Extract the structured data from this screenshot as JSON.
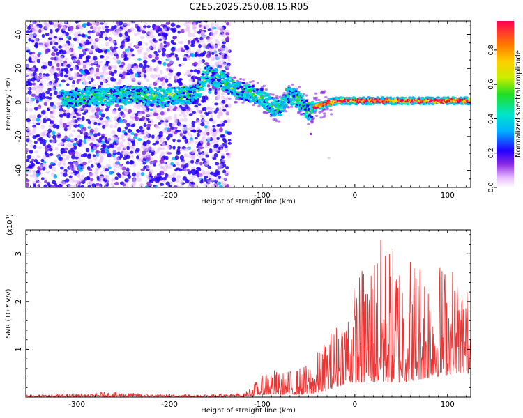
{
  "title": "C2E5.2025.250.08.15.R05",
  "chart_data": [
    {
      "type": "heatmap",
      "xlabel": "Height of straight line (km)",
      "ylabel": "Frequency (Hz)",
      "xlim": [
        -355,
        125
      ],
      "ylim": [
        -50,
        48
      ],
      "x_ticks": [
        -300,
        -200,
        -100,
        0,
        100
      ],
      "y_ticks": [
        -40,
        -20,
        0,
        20,
        40
      ],
      "noise_region_x": [
        -355,
        -135
      ],
      "signal_track": [
        {
          "x": -305,
          "y": 2
        },
        {
          "x": -290,
          "y": 4
        },
        {
          "x": -270,
          "y": 3
        },
        {
          "x": -250,
          "y": 5
        },
        {
          "x": -230,
          "y": 4
        },
        {
          "x": -205,
          "y": 3
        },
        {
          "x": -170,
          "y": 5
        },
        {
          "x": -160,
          "y": 17
        },
        {
          "x": -140,
          "y": 12
        },
        {
          "x": -130,
          "y": 8
        },
        {
          "x": -115,
          "y": 6
        },
        {
          "x": -100,
          "y": 3
        },
        {
          "x": -90,
          "y": -2
        },
        {
          "x": -80,
          "y": -4
        },
        {
          "x": -72,
          "y": 5
        },
        {
          "x": -60,
          "y": 1
        },
        {
          "x": -50,
          "y": -5
        },
        {
          "x": -40,
          "y": -2
        },
        {
          "x": -20,
          "y": 1
        },
        {
          "x": 0,
          "y": 1
        },
        {
          "x": 20,
          "y": 1
        },
        {
          "x": 40,
          "y": 1
        },
        {
          "x": 60,
          "y": 1
        },
        {
          "x": 80,
          "y": 1
        },
        {
          "x": 100,
          "y": 1
        },
        {
          "x": 125,
          "y": 1
        }
      ],
      "colorbar": {
        "label": "Normalized spectral amplitude",
        "range": [
          0.0,
          0.97
        ],
        "ticks": [
          "0.0",
          "0.2",
          "0.4",
          "0.6",
          "0.8"
        ]
      }
    },
    {
      "type": "line",
      "xlabel": "Height of straight line (km)",
      "ylabel": "SNR (10 * v/v)",
      "multiplier": "(x10",
      "multiplier_exp": "4",
      "multiplier_close": ")",
      "xlim": [
        -355,
        125
      ],
      "ylim": [
        0,
        3.5
      ],
      "x_ticks": [
        -300,
        -200,
        -100,
        0,
        100
      ],
      "y_ticks": [
        1,
        2,
        3
      ],
      "color": "#ee3333",
      "envelope": [
        {
          "x": -355,
          "lo": 0.01,
          "hi": 0.05
        },
        {
          "x": -280,
          "lo": 0.01,
          "hi": 0.07
        },
        {
          "x": -272,
          "lo": 0.01,
          "hi": 0.12
        },
        {
          "x": -200,
          "lo": 0.01,
          "hi": 0.05
        },
        {
          "x": -120,
          "lo": 0.01,
          "hi": 0.08
        },
        {
          "x": -100,
          "lo": 0.05,
          "hi": 0.45
        },
        {
          "x": -95,
          "lo": 0.05,
          "hi": 0.7
        },
        {
          "x": -80,
          "lo": 0.05,
          "hi": 0.5
        },
        {
          "x": -50,
          "lo": 0.05,
          "hi": 0.7
        },
        {
          "x": -35,
          "lo": 0.1,
          "hi": 1.1
        },
        {
          "x": -20,
          "lo": 0.2,
          "hi": 1.6
        },
        {
          "x": -10,
          "lo": 0.3,
          "hi": 2.0
        },
        {
          "x": 10,
          "lo": 0.3,
          "hi": 2.9
        },
        {
          "x": 25,
          "lo": 0.3,
          "hi": 3.4
        },
        {
          "x": 50,
          "lo": 0.3,
          "hi": 3.2
        },
        {
          "x": 80,
          "lo": 0.4,
          "hi": 3.0
        },
        {
          "x": 110,
          "lo": 0.5,
          "hi": 2.8
        },
        {
          "x": 125,
          "lo": 0.5,
          "hi": 2.2
        }
      ]
    }
  ]
}
